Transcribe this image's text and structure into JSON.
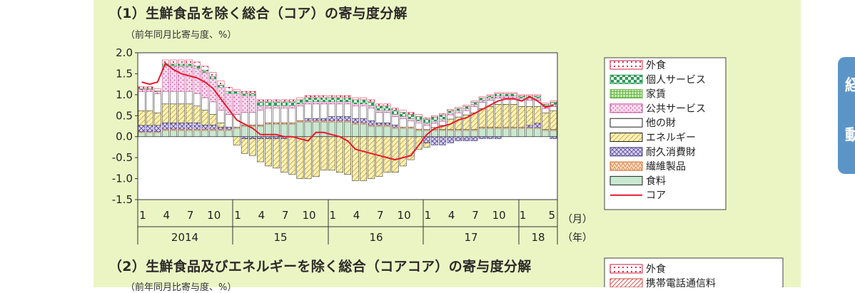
{
  "section1": {
    "heading": "（1）生鮮食品を除く総合（コア）の寄与度分解",
    "unit": "（前年同月比寄与度、%）"
  },
  "section2": {
    "heading": "（2）生鮮食品及びエネルギーを除く総合（コアコア）の寄与度分解",
    "unit": "（前年同月比寄与度、%）",
    "legend": [
      "外食",
      "携帯電話通信料"
    ]
  },
  "side_tab": {
    "glyph_top": "経",
    "glyph_bottom": "動"
  },
  "colors": {
    "panel": "#ebf5c4",
    "core_line": "#e8192c",
    "tab": "#5b95c8"
  },
  "chart_data": {
    "type": "bar",
    "stacked": true,
    "ylim": [
      -1.5,
      2.0
    ],
    "yticks": [
      "2.0",
      "1.5",
      "1.0",
      "0.5",
      "0.0",
      "-0.5",
      "-1.0",
      "-1.5"
    ],
    "month_ticks": [
      "1",
      "4",
      "7",
      "10",
      "1",
      "4",
      "7",
      "10",
      "1",
      "4",
      "7",
      "10",
      "1",
      "4",
      "7",
      "10",
      "1",
      "5"
    ],
    "year_labels": [
      "2014",
      "15",
      "16",
      "17",
      "18"
    ],
    "x_unit_month": "（月）",
    "x_unit_year": "（年）",
    "x": [
      "2014-01",
      "2014-02",
      "2014-03",
      "2014-04",
      "2014-05",
      "2014-06",
      "2014-07",
      "2014-08",
      "2014-09",
      "2014-10",
      "2014-11",
      "2014-12",
      "2015-01",
      "2015-02",
      "2015-03",
      "2015-04",
      "2015-05",
      "2015-06",
      "2015-07",
      "2015-08",
      "2015-09",
      "2015-10",
      "2015-11",
      "2015-12",
      "2016-01",
      "2016-02",
      "2016-03",
      "2016-04",
      "2016-05",
      "2016-06",
      "2016-07",
      "2016-08",
      "2016-09",
      "2016-10",
      "2016-11",
      "2016-12",
      "2017-01",
      "2017-02",
      "2017-03",
      "2017-04",
      "2017-05",
      "2017-06",
      "2017-07",
      "2017-08",
      "2017-09",
      "2017-10",
      "2017-11",
      "2017-12",
      "2018-01",
      "2018-02",
      "2018-03",
      "2018-04",
      "2018-05"
    ],
    "series": [
      {
        "name": "外食",
        "key": "eatout",
        "values": [
          0.05,
          0.05,
          0.05,
          0.1,
          0.1,
          0.1,
          0.1,
          0.1,
          0.1,
          0.1,
          0.1,
          0.1,
          0.05,
          0.05,
          0.05,
          0.05,
          0.05,
          0.05,
          0.05,
          0.05,
          0.05,
          0.05,
          0.05,
          0.05,
          0.05,
          0.05,
          0.05,
          0.05,
          0.05,
          0.05,
          0.05,
          0.05,
          0.05,
          0.05,
          0.05,
          0.05,
          0.03,
          0.03,
          0.03,
          0.03,
          0.03,
          0.03,
          0.03,
          0.03,
          0.03,
          0.03,
          0.03,
          0.03,
          0.03,
          0.03,
          0.03,
          0.03,
          0.03
        ]
      },
      {
        "name": "個人サービス",
        "key": "personal",
        "values": [
          0.02,
          0.02,
          0.02,
          0.05,
          0.05,
          0.05,
          0.05,
          0.05,
          0.05,
          0.05,
          0.05,
          0.05,
          0.05,
          0.05,
          0.05,
          0.1,
          0.1,
          0.1,
          0.1,
          0.1,
          0.1,
          0.1,
          0.1,
          0.1,
          0.1,
          0.1,
          0.1,
          0.1,
          0.1,
          0.1,
          0.1,
          0.1,
          0.1,
          0.1,
          0.1,
          0.1,
          0.1,
          0.1,
          0.1,
          0.05,
          0.05,
          0.05,
          0.05,
          0.05,
          0.05,
          0.05,
          0.05,
          0.05,
          0.05,
          0.05,
          0.05,
          0.05,
          0.05
        ]
      },
      {
        "name": "家賃",
        "key": "rent",
        "values": [
          0,
          0,
          0,
          0,
          0,
          0,
          0,
          0,
          0,
          0,
          0,
          0,
          0,
          0,
          0,
          0,
          0,
          0,
          0,
          0,
          0,
          0,
          0,
          0,
          0,
          0,
          0,
          0,
          0,
          0,
          0,
          0,
          0,
          0,
          0,
          0,
          0,
          0,
          0,
          0,
          0,
          0,
          0,
          0,
          0,
          0,
          0,
          0,
          0,
          0,
          0,
          0,
          0
        ]
      },
      {
        "name": "公共サービス",
        "key": "public",
        "values": [
          0.05,
          0.05,
          0.05,
          0.6,
          0.6,
          0.6,
          0.6,
          0.6,
          0.6,
          0.55,
          0.55,
          0.5,
          0.5,
          0.4,
          0.4,
          0.1,
          0.05,
          0.05,
          0.05,
          0.05,
          0.05,
          0.05,
          0.05,
          0.05,
          0.05,
          0.05,
          0.05,
          0.05,
          0.05,
          0.05,
          0.05,
          0.05,
          0.05,
          0.05,
          0.05,
          0.05,
          0.05,
          0.05,
          0.05,
          0.05,
          0.05,
          0.05,
          0.05,
          0.05,
          0.05,
          0.05,
          0.05,
          0.05,
          0.05,
          0.05,
          0.05,
          0.05,
          0.05
        ]
      },
      {
        "name": "他の財",
        "key": "other",
        "values": [
          0.45,
          0.45,
          0.45,
          0.3,
          0.3,
          0.3,
          0.3,
          0.3,
          0.3,
          0.3,
          0.3,
          0.3,
          0.3,
          0.3,
          0.3,
          0.35,
          0.35,
          0.35,
          0.35,
          0.35,
          0.35,
          0.35,
          0.35,
          0.35,
          0.3,
          0.3,
          0.3,
          0.3,
          0.3,
          0.3,
          0.25,
          0.25,
          0.2,
          0.2,
          0.15,
          0.15,
          0.1,
          0.1,
          0.1,
          0.1,
          0.1,
          0.1,
          0.15,
          0.15,
          0.15,
          0.15,
          0.15,
          0.15,
          0.15,
          0.15,
          0.15,
          0.1,
          0.1
        ]
      },
      {
        "name": "エネルギー",
        "key": "energy",
        "values": [
          0.35,
          0.35,
          0.3,
          0.45,
          0.45,
          0.45,
          0.45,
          0.4,
          0.35,
          0.25,
          0.1,
          0.0,
          -0.2,
          -0.35,
          -0.4,
          -0.55,
          -0.65,
          -0.7,
          -0.8,
          -0.9,
          -1.0,
          -1.0,
          -0.95,
          -0.8,
          -0.8,
          -0.85,
          -0.9,
          -1.05,
          -1.05,
          -1.0,
          -0.95,
          -0.85,
          -0.85,
          -0.7,
          -0.55,
          -0.3,
          -0.1,
          0.05,
          0.1,
          0.25,
          0.3,
          0.35,
          0.4,
          0.45,
          0.5,
          0.55,
          0.55,
          0.55,
          0.5,
          0.45,
          0.4,
          0.4,
          0.45
        ]
      },
      {
        "name": "耐久消費財",
        "key": "durables",
        "values": [
          0.15,
          0.15,
          0.15,
          0.15,
          0.15,
          0.15,
          0.15,
          0.15,
          0.1,
          0.1,
          0.05,
          0.05,
          0.0,
          -0.05,
          -0.05,
          -0.05,
          -0.05,
          -0.05,
          -0.05,
          0.0,
          0.0,
          0.05,
          0.05,
          0.05,
          0.1,
          0.1,
          0.1,
          0.1,
          0.1,
          0.1,
          0.05,
          0.05,
          0.05,
          0.0,
          0.0,
          0.0,
          -0.15,
          -0.2,
          -0.2,
          -0.15,
          -0.1,
          -0.1,
          -0.1,
          -0.05,
          -0.05,
          -0.05,
          0.0,
          0.0,
          0.0,
          0.05,
          0.1,
          0.0,
          -0.05
        ]
      },
      {
        "name": "繊維製品",
        "key": "textiles",
        "values": [
          0.02,
          0.02,
          0.02,
          0.03,
          0.03,
          0.03,
          0.03,
          0.03,
          0.03,
          0.03,
          0.03,
          0.03,
          0.03,
          0.03,
          0.03,
          0.03,
          0.03,
          0.03,
          0.03,
          0.03,
          0.03,
          0.03,
          0.03,
          0.03,
          0.03,
          0.03,
          0.03,
          0.03,
          0.03,
          0.03,
          0.03,
          0.03,
          0.03,
          0.03,
          0.03,
          0.03,
          0.02,
          0.02,
          0.02,
          0.02,
          0.02,
          0.02,
          0.02,
          0.02,
          0.02,
          0.02,
          0.02,
          0.02,
          0.02,
          0.02,
          0.02,
          0.02,
          0.02
        ]
      },
      {
        "name": "食料",
        "key": "food",
        "values": [
          0.1,
          0.1,
          0.1,
          0.15,
          0.15,
          0.15,
          0.15,
          0.15,
          0.15,
          0.15,
          0.15,
          0.15,
          0.2,
          0.25,
          0.25,
          0.25,
          0.3,
          0.3,
          0.3,
          0.3,
          0.35,
          0.35,
          0.35,
          0.35,
          0.35,
          0.35,
          0.35,
          0.3,
          0.3,
          0.25,
          0.25,
          0.25,
          0.2,
          0.2,
          0.2,
          0.15,
          0.15,
          0.15,
          0.15,
          0.15,
          0.15,
          0.15,
          0.15,
          0.2,
          0.2,
          0.2,
          0.2,
          0.2,
          0.2,
          0.2,
          0.2,
          0.15,
          0.15
        ]
      }
    ],
    "line": {
      "name": "コア",
      "values": [
        1.3,
        1.25,
        1.3,
        1.75,
        1.6,
        1.5,
        1.45,
        1.4,
        1.3,
        1.15,
        0.9,
        0.65,
        0.4,
        0.3,
        0.2,
        0.05,
        0.05,
        0.05,
        0.0,
        0.0,
        -0.05,
        -0.1,
        0.1,
        0.1,
        0.05,
        0.0,
        -0.1,
        -0.3,
        -0.35,
        -0.4,
        -0.45,
        -0.5,
        -0.55,
        -0.5,
        -0.45,
        -0.2,
        0.05,
        0.2,
        0.25,
        0.3,
        0.4,
        0.45,
        0.55,
        0.65,
        0.75,
        0.85,
        0.9,
        0.9,
        0.85,
        0.95,
        0.85,
        0.7,
        0.75
      ]
    }
  }
}
